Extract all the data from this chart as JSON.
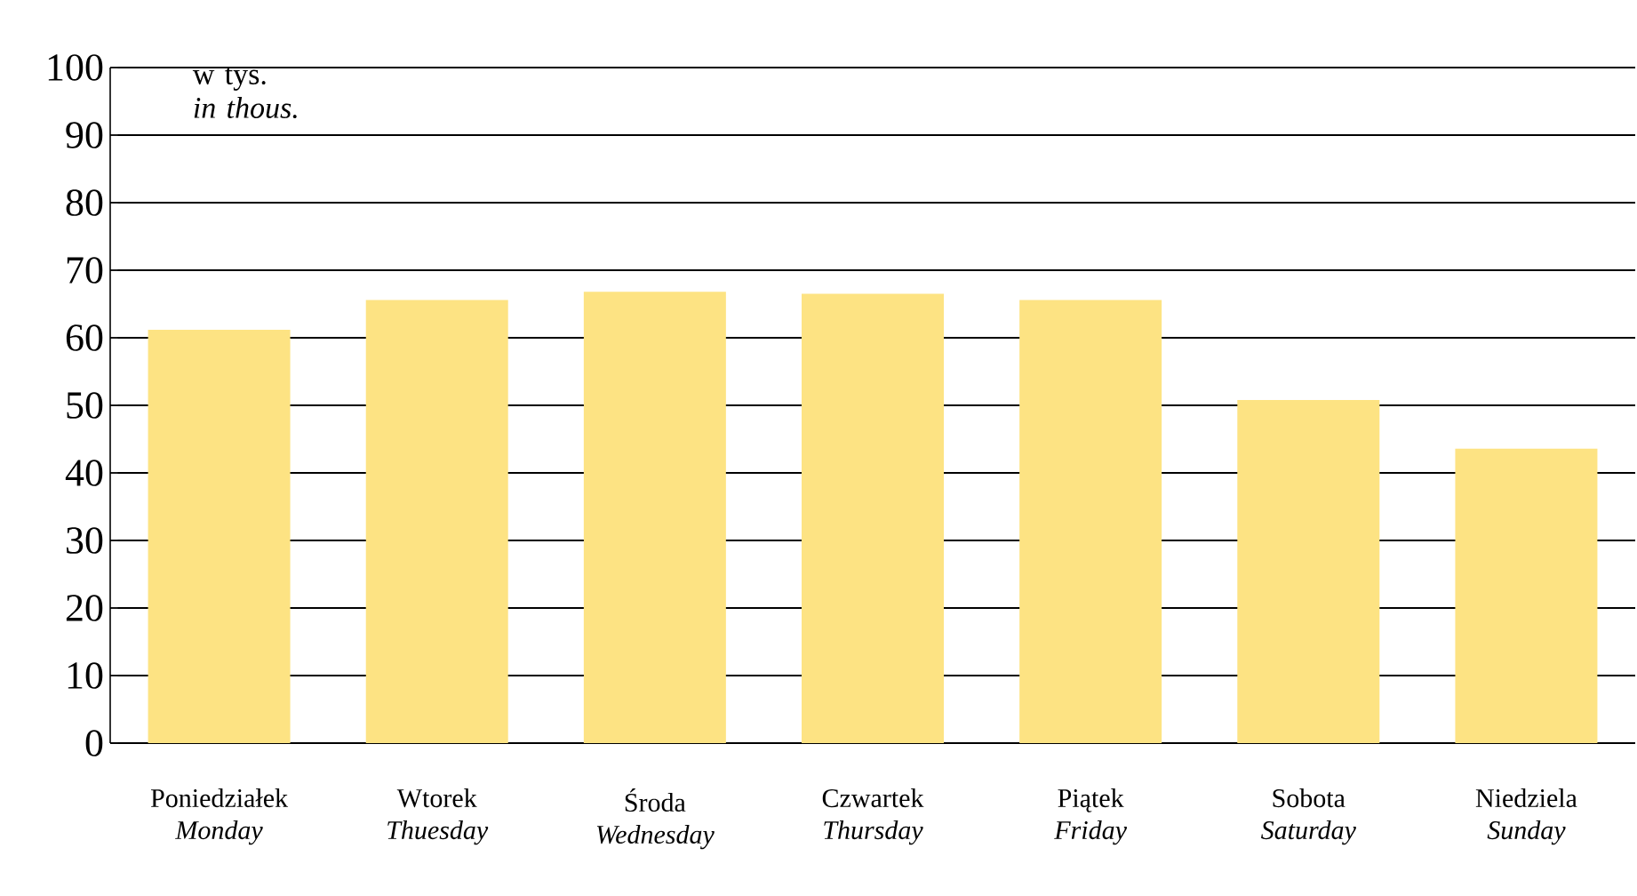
{
  "chart_data": {
    "type": "bar",
    "ylabel": "w tys. *in thous.*",
    "categories": [
      "Poniedziałek *Monday*",
      "Wtorek *Thuesday*",
      "Środa *Wednesday*",
      "Czwartek *Thursday*",
      "Piątek *Friday*",
      "Sobota *Saturday*",
      "Niedziela *Sunday*"
    ],
    "values": [
      61.2,
      65.6,
      66.8,
      66.5,
      65.6,
      50.8,
      43.6
    ],
    "color": "#fde383",
    "ylim": [
      0,
      100
    ],
    "yticks": [
      0,
      10,
      20,
      30,
      40,
      50,
      60,
      70,
      80,
      90,
      100
    ],
    "grid": "y"
  }
}
